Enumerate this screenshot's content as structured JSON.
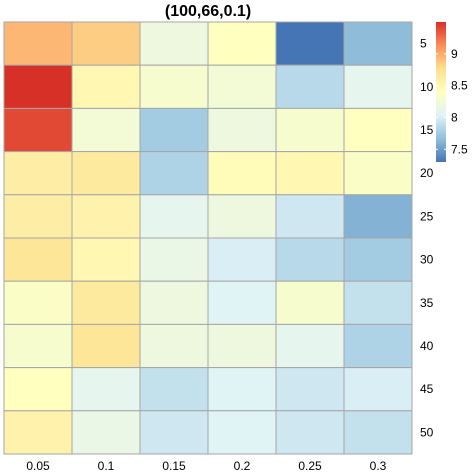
{
  "chart_data": {
    "type": "heatmap",
    "title": "(100,66,0.1)",
    "xlabel": "",
    "ylabel": "",
    "x_categories": [
      "0.05",
      "0.1",
      "0.15",
      "0.2",
      "0.25",
      "0.3"
    ],
    "y_categories": [
      "5",
      "10",
      "15",
      "20",
      "25",
      "30",
      "35",
      "40",
      "45",
      "50"
    ],
    "values": [
      [
        8.95,
        8.85,
        8.2,
        8.4,
        7.3,
        7.65
      ],
      [
        9.5,
        8.5,
        8.3,
        8.25,
        7.85,
        8.1
      ],
      [
        9.4,
        8.25,
        7.75,
        8.2,
        8.3,
        8.4
      ],
      [
        8.6,
        8.65,
        7.8,
        8.45,
        8.5,
        8.35
      ],
      [
        8.6,
        8.55,
        8.1,
        8.2,
        7.95,
        7.6
      ],
      [
        8.7,
        8.5,
        8.15,
        8.0,
        7.85,
        7.75
      ],
      [
        8.35,
        8.65,
        8.2,
        8.05,
        8.3,
        7.9
      ],
      [
        8.3,
        8.7,
        8.2,
        8.2,
        8.1,
        7.8
      ],
      [
        8.4,
        8.1,
        7.9,
        8.05,
        7.95,
        8.0
      ],
      [
        8.55,
        8.15,
        7.95,
        8.05,
        7.95,
        7.9
      ]
    ],
    "colorbar": {
      "range": [
        7.3,
        9.5
      ],
      "ticks": [
        "7.5",
        "8",
        "8.5",
        "9"
      ],
      "tick_values": [
        7.5,
        8.0,
        8.5,
        9.0
      ],
      "colors": [
        "#4575b4",
        "#91bfdb",
        "#e0f3f8",
        "#ffffbf",
        "#fee090",
        "#fc8d59",
        "#d73027"
      ]
    },
    "legend_position": "top-right",
    "grid": false
  }
}
